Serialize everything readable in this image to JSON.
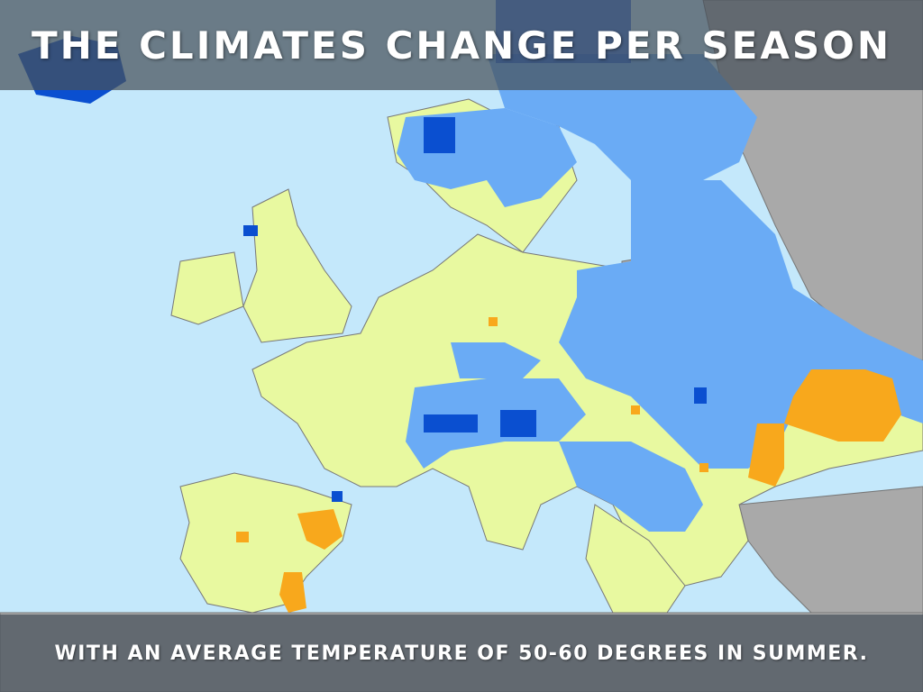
{
  "slide": {
    "title": "THE CLIMATES CHANGE PER SEASON",
    "caption": "WITH AN AVERAGE TEMPERATURE OF 50-60 DEGREES IN SUMMER."
  },
  "colors": {
    "sea": "#c4e8fb",
    "land_mild": "#e8f9a0",
    "cool": "#6aabf5",
    "cold": "#0a4fd0",
    "warm": "#f8a81c",
    "outside": "#a9a9a9",
    "bar": "#46505a"
  }
}
